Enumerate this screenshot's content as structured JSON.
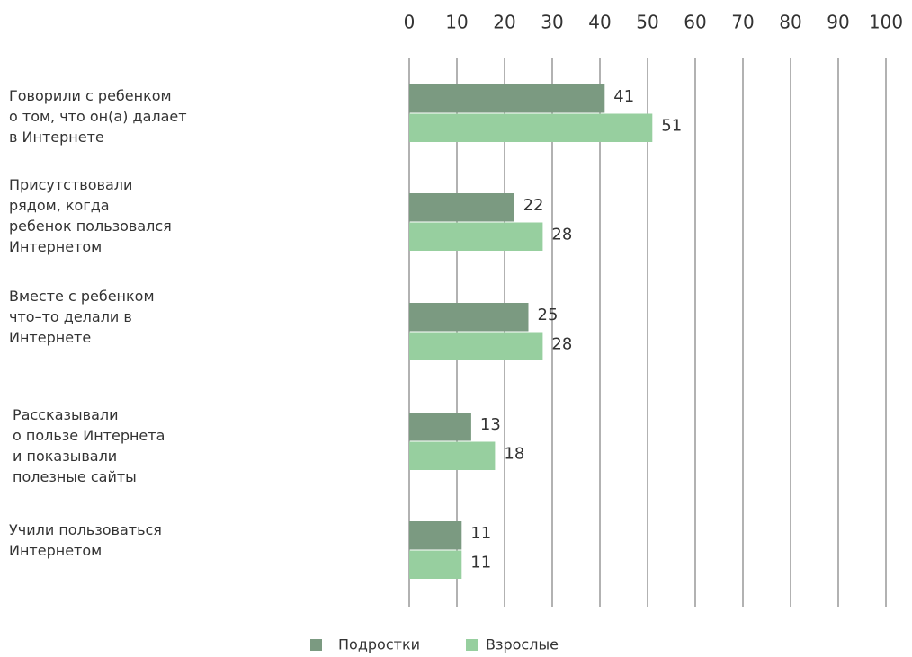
{
  "chart_data": {
    "type": "bar",
    "orientation": "horizontal",
    "categories": [
      "Говорили с ребенком\nо том, что он(а) далает\nв Интернете",
      "Присутствовали\nрядом, когда\nребенок пользовался\nИнтернетом",
      "Вместе с ребенком\nчто–то делали в\nИнтернете",
      "Рассказывали\nо пользе Интернета\nи показывали\nполезные сайты",
      "Учили пользоваться\nИнтернетом"
    ],
    "series": [
      {
        "name": "Подростки",
        "color": "#7b9a81",
        "values": [
          41,
          22,
          25,
          13,
          11
        ]
      },
      {
        "name": "Взрослые",
        "color": "#97cf9f",
        "values": [
          51,
          28,
          28,
          18,
          11
        ]
      }
    ],
    "xlim": [
      0,
      100
    ],
    "xticks": [
      0,
      10,
      20,
      30,
      40,
      50,
      60,
      70,
      80,
      90,
      100
    ],
    "grid": true,
    "legend": "bottom"
  }
}
